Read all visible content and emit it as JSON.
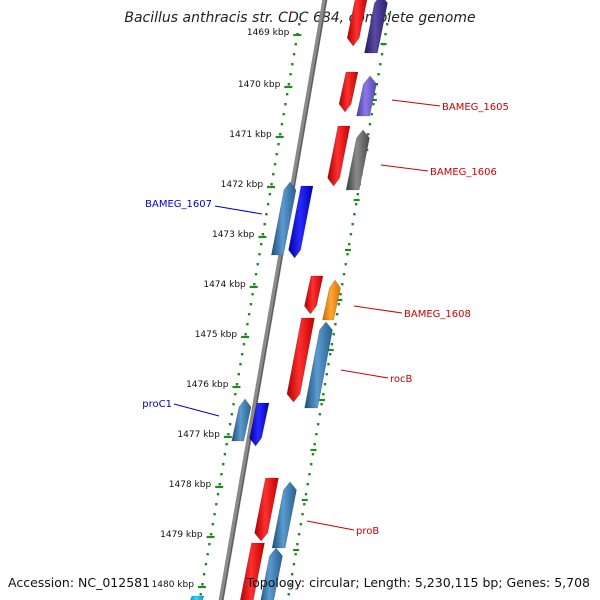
{
  "title": "Bacillus anthracis str. CDC 684, complete genome",
  "accession": "Accession: NC_012581",
  "summary": "Topology: circular; Length: 5,230,115 bp; Genes: 5,708",
  "ticks": [
    "1469 kbp",
    "1470 kbp",
    "1471 kbp",
    "1472 kbp",
    "1473 kbp",
    "1474 kbp",
    "1475 kbp",
    "1476 kbp",
    "1477 kbp",
    "1478 kbp",
    "1479 kbp",
    "1480 kbp"
  ],
  "gene_labels": [
    {
      "text": "BAMEG_1605",
      "color": "#cc0000"
    },
    {
      "text": "BAMEG_1606",
      "color": "#cc0000"
    },
    {
      "text": "BAMEG_1607",
      "color": "#0000cc"
    },
    {
      "text": "BAMEG_1608",
      "color": "#cc0000"
    },
    {
      "text": "rocB",
      "color": "#cc0000"
    },
    {
      "text": "proC1",
      "color": "#0000cc"
    },
    {
      "text": "proB",
      "color": "#cc0000"
    }
  ],
  "colors": {
    "backbone": "#777777",
    "tick": "#1f8a1f",
    "red_gene": "#ee1111",
    "steel_gene": "#3a78b0",
    "blue_gene": "#1010ee",
    "purple_gene": "#6a5acd",
    "indigo_gene": "#3d2f8a",
    "gray_gene": "#666666",
    "orange_gene": "#ff8c00",
    "cyan_gene": "#00bfff"
  }
}
